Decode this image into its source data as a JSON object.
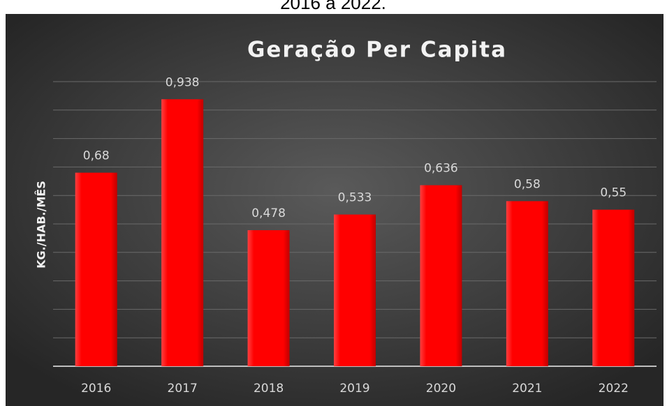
{
  "caption": "2016 a 2022.",
  "chart_data": {
    "type": "bar",
    "title": "Geração Per Capita",
    "ylabel": "KG./HAB./MÊS",
    "categories": [
      "2016",
      "2017",
      "2018",
      "2019",
      "2020",
      "2021",
      "2022"
    ],
    "values": [
      0.68,
      0.938,
      0.478,
      0.533,
      0.636,
      0.58,
      0.55
    ],
    "value_labels": [
      "0,68",
      "0,938",
      "0,478",
      "0,533",
      "0,636",
      "0,58",
      "0,55"
    ],
    "color": "#ff0000",
    "ylim": [
      0,
      1.0
    ],
    "yticks": [
      0,
      0.1,
      0.2,
      0.3,
      0.4,
      0.5,
      0.6,
      0.7,
      0.8,
      0.9,
      1.0
    ],
    "grid": true
  }
}
